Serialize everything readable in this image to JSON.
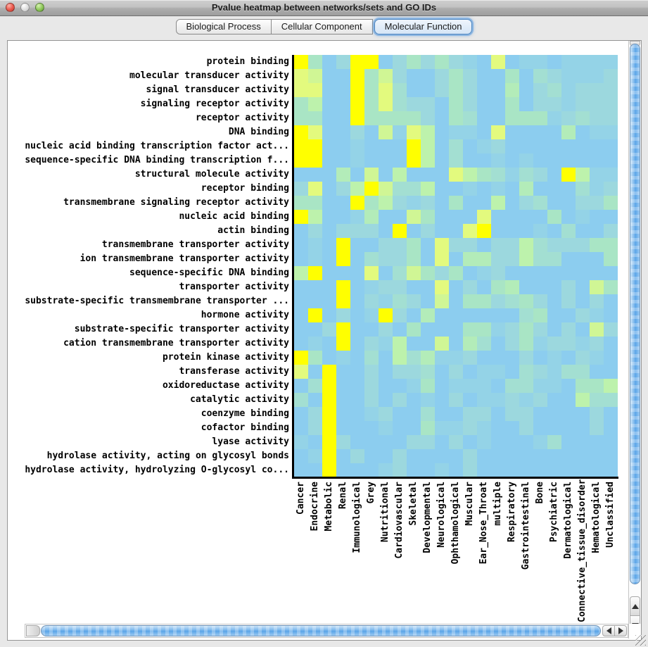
{
  "window": {
    "title": "Pvalue heatmap between networks/sets and GO IDs"
  },
  "tabs": [
    {
      "label": "Biological Process",
      "selected": false
    },
    {
      "label": "Cellular Component",
      "selected": false
    },
    {
      "label": "Molecular Function",
      "selected": true
    }
  ],
  "chart_data": {
    "type": "heatmap",
    "title": "Pvalue heatmap between networks/sets and GO IDs",
    "xlabel": "",
    "ylabel": "",
    "legend": "none",
    "grid": "off",
    "value_scale": "0 = least significant (light blue) to 10 = most significant (yellow)",
    "palette": [
      "#8CCDEF",
      "#9CD8DE",
      "#A9E5C5",
      "#BDF2AC",
      "#E3FA7E",
      "#FFFF00"
    ],
    "axis_color": "#000000",
    "columns": [
      "Cancer",
      "Endocrine",
      "Metabolic",
      "Renal",
      "Immunological",
      "Grey",
      "Nutritional",
      "Cardiovascular",
      "Skeletal",
      "Developmental",
      "Neurological",
      "Ophthamological",
      "Muscular",
      "Ear_Nose_Throat",
      "multiple",
      "Respiratory",
      "Gastrointestinal",
      "Bone",
      "Psychiatric",
      "Dermatological",
      "Connective_tissue_disorder",
      "Hematological",
      "Unclassified"
    ],
    "rows": [
      "protein binding",
      "molecular transducer activity",
      "signal transducer activity",
      "signaling receptor activity",
      "receptor activity",
      "DNA binding",
      "nucleic acid binding transcription factor act...",
      "sequence-specific DNA binding transcription f...",
      "structural molecule activity",
      "receptor binding",
      "transmembrane signaling receptor activity",
      "nucleic acid binding",
      "actin binding",
      "transmembrane transporter activity",
      "ion transmembrane transporter activity",
      "sequence-specific DNA binding",
      "transporter activity",
      "substrate-specific transmembrane transporter ...",
      "hormone activity",
      "substrate-specific transporter activity",
      "cation transmembrane transporter activity",
      "protein kinase activity",
      "transferase activity",
      "oxidoreductase activity",
      "catalytic activity",
      "coenzyme binding",
      "cofactor binding",
      "lyase activity",
      "hydrolase activity, acting on glycosyl bonds",
      "hydrolase activity, hydrolyzing O-glycosyl co..."
    ],
    "values": [
      [
        10,
        4,
        0,
        2,
        10,
        10,
        0,
        2,
        4,
        2,
        4,
        2,
        1,
        0,
        8,
        0,
        1,
        1,
        0,
        1,
        1,
        1,
        1
      ],
      [
        8,
        7,
        0,
        0,
        10,
        4,
        7,
        2,
        0,
        0,
        2,
        4,
        2,
        0,
        0,
        4,
        0,
        3,
        2,
        1,
        1,
        1,
        2
      ],
      [
        8,
        8,
        0,
        0,
        10,
        4,
        8,
        3,
        0,
        0,
        2,
        4,
        2,
        0,
        0,
        5,
        0,
        2,
        3,
        1,
        2,
        2,
        2
      ],
      [
        4,
        6,
        0,
        0,
        10,
        4,
        8,
        3,
        2,
        2,
        0,
        4,
        2,
        0,
        0,
        4,
        0,
        2,
        2,
        1,
        2,
        2,
        2
      ],
      [
        4,
        4,
        0,
        0,
        10,
        4,
        4,
        4,
        4,
        2,
        0,
        4,
        3,
        0,
        0,
        4,
        4,
        4,
        1,
        2,
        3,
        2,
        2
      ],
      [
        10,
        8,
        0,
        0,
        2,
        0,
        7,
        1,
        8,
        6,
        0,
        1,
        1,
        0,
        8,
        0,
        0,
        0,
        0,
        5,
        0,
        1,
        1
      ],
      [
        10,
        10,
        0,
        0,
        1,
        0,
        0,
        0,
        10,
        6,
        0,
        3,
        0,
        1,
        2,
        0,
        0,
        0,
        0,
        0,
        0,
        0,
        0
      ],
      [
        10,
        10,
        0,
        0,
        1,
        0,
        0,
        0,
        10,
        6,
        0,
        3,
        0,
        0,
        1,
        0,
        1,
        0,
        0,
        0,
        0,
        0,
        0
      ],
      [
        0,
        0,
        0,
        5,
        0,
        7,
        0,
        6,
        0,
        0,
        0,
        8,
        6,
        4,
        3,
        1,
        3,
        2,
        0,
        10,
        6,
        1,
        1
      ],
      [
        2,
        8,
        0,
        2,
        6,
        10,
        7,
        3,
        3,
        6,
        0,
        0,
        1,
        0,
        1,
        0,
        5,
        0,
        0,
        0,
        3,
        1,
        2
      ],
      [
        4,
        4,
        0,
        0,
        10,
        4,
        6,
        2,
        1,
        2,
        0,
        4,
        0,
        0,
        6,
        0,
        2,
        3,
        0,
        0,
        2,
        2,
        4
      ],
      [
        10,
        6,
        0,
        0,
        1,
        5,
        0,
        0,
        7,
        4,
        0,
        0,
        0,
        8,
        0,
        0,
        0,
        0,
        4,
        0,
        1,
        0,
        0
      ],
      [
        0,
        2,
        0,
        2,
        2,
        2,
        0,
        10,
        0,
        2,
        0,
        0,
        8,
        10,
        0,
        0,
        0,
        1,
        0,
        3,
        0,
        0,
        2
      ],
      [
        0,
        1,
        0,
        10,
        0,
        0,
        2,
        2,
        4,
        0,
        8,
        2,
        2,
        0,
        2,
        2,
        6,
        3,
        2,
        2,
        2,
        4,
        4
      ],
      [
        0,
        1,
        0,
        10,
        0,
        3,
        2,
        2,
        4,
        0,
        8,
        0,
        5,
        5,
        2,
        2,
        6,
        3,
        3,
        0,
        0,
        0,
        4
      ],
      [
        6,
        10,
        0,
        0,
        0,
        8,
        0,
        3,
        7,
        4,
        2,
        4,
        0,
        1,
        2,
        0,
        0,
        0,
        0,
        0,
        0,
        0,
        0
      ],
      [
        0,
        0,
        0,
        10,
        0,
        1,
        2,
        2,
        0,
        0,
        8,
        0,
        2,
        0,
        4,
        5,
        0,
        0,
        0,
        2,
        0,
        7,
        4
      ],
      [
        0,
        0,
        0,
        10,
        0,
        2,
        1,
        3,
        2,
        0,
        7,
        0,
        4,
        4,
        2,
        3,
        4,
        2,
        0,
        2,
        0,
        2,
        0
      ],
      [
        0,
        10,
        0,
        2,
        0,
        1,
        10,
        2,
        0,
        5,
        0,
        0,
        0,
        0,
        0,
        0,
        3,
        4,
        0,
        0,
        2,
        1,
        0
      ],
      [
        0,
        0,
        2,
        10,
        0,
        0,
        2,
        0,
        4,
        0,
        0,
        0,
        4,
        4,
        1,
        2,
        4,
        2,
        0,
        2,
        0,
        7,
        2
      ],
      [
        0,
        1,
        0,
        10,
        0,
        2,
        1,
        6,
        0,
        0,
        7,
        0,
        5,
        3,
        0,
        2,
        4,
        1,
        2,
        2,
        1,
        2,
        0
      ],
      [
        10,
        4,
        0,
        1,
        0,
        3,
        0,
        6,
        3,
        5,
        1,
        1,
        2,
        0,
        0,
        0,
        2,
        0,
        1,
        0,
        2,
        1,
        0
      ],
      [
        8,
        0,
        10,
        0,
        0,
        2,
        0,
        2,
        2,
        3,
        0,
        2,
        0,
        1,
        1,
        0,
        3,
        2,
        1,
        3,
        3,
        0,
        0
      ],
      [
        0,
        3,
        10,
        0,
        0,
        2,
        0,
        0,
        1,
        4,
        0,
        1,
        1,
        1,
        0,
        3,
        3,
        1,
        1,
        0,
        4,
        4,
        6
      ],
      [
        3,
        0,
        10,
        0,
        0,
        2,
        0,
        2,
        0,
        1,
        0,
        2,
        0,
        1,
        1,
        2,
        1,
        2,
        0,
        0,
        6,
        3,
        3
      ],
      [
        0,
        2,
        10,
        0,
        0,
        1,
        2,
        0,
        0,
        3,
        0,
        0,
        2,
        2,
        0,
        2,
        2,
        0,
        0,
        0,
        0,
        2,
        0
      ],
      [
        0,
        2,
        10,
        0,
        0,
        0,
        1,
        0,
        0,
        4,
        1,
        1,
        2,
        1,
        0,
        0,
        2,
        0,
        0,
        0,
        0,
        2,
        0
      ],
      [
        1,
        0,
        10,
        2,
        0,
        0,
        0,
        0,
        2,
        2,
        0,
        2,
        0,
        1,
        0,
        0,
        0,
        1,
        3,
        0,
        0,
        0,
        0
      ],
      [
        0,
        1,
        10,
        0,
        2,
        0,
        0,
        2,
        0,
        0,
        0,
        0,
        2,
        0,
        0,
        0,
        0,
        0,
        0,
        0,
        0,
        0,
        0
      ],
      [
        0,
        0,
        10,
        0,
        0,
        0,
        1,
        2,
        0,
        0,
        1,
        0,
        2,
        0,
        0,
        0,
        0,
        0,
        0,
        0,
        0,
        0,
        0
      ]
    ]
  }
}
